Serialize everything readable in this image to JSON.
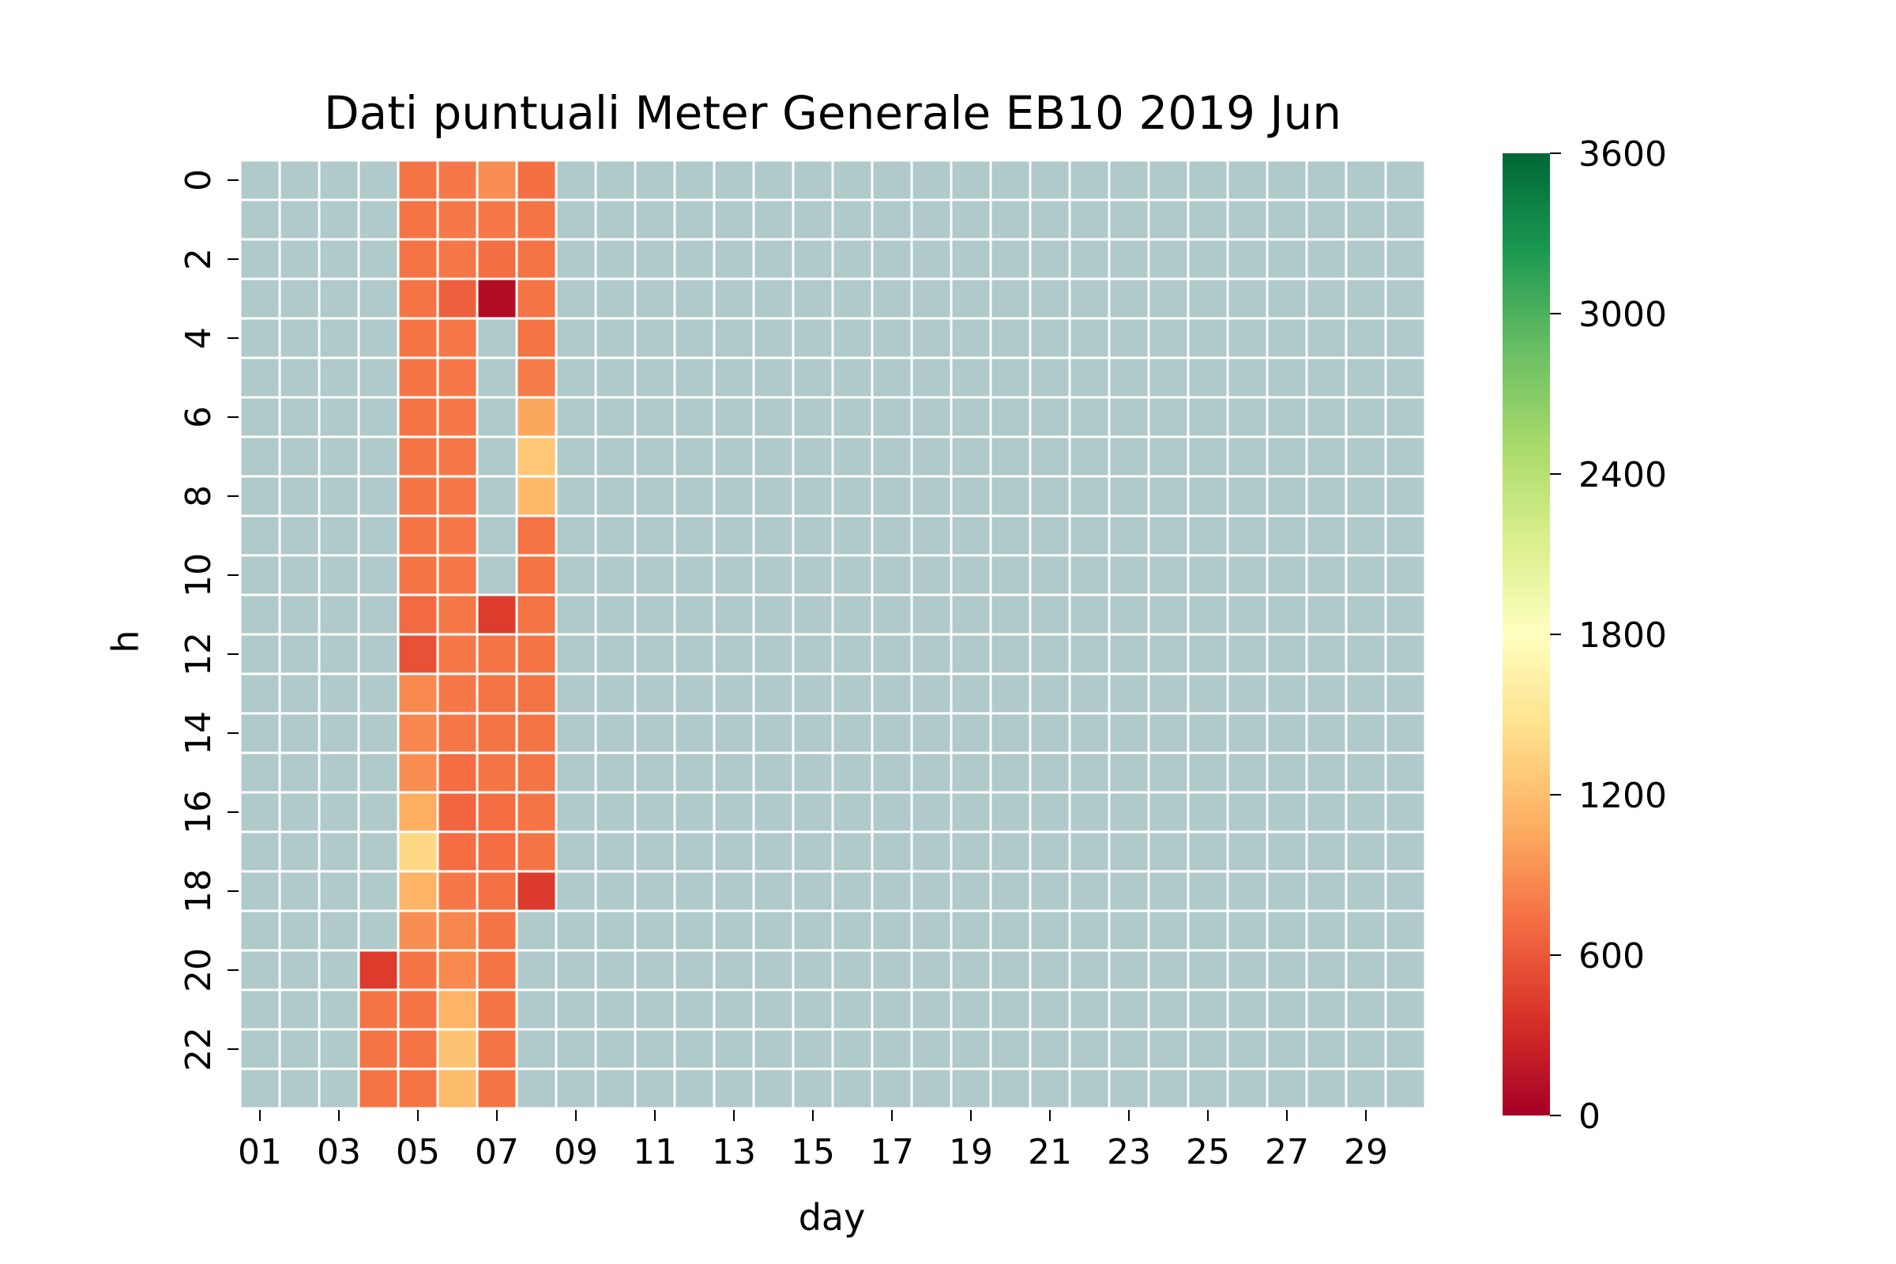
{
  "chart_data": {
    "type": "heatmap",
    "title": "Dati puntuali Meter Generale EB10 2019 Jun",
    "xlabel": "day",
    "ylabel": "h",
    "x_tick_labels": [
      "01",
      "03",
      "05",
      "07",
      "09",
      "11",
      "13",
      "15",
      "17",
      "19",
      "21",
      "23",
      "25",
      "27",
      "29"
    ],
    "x_tick_days": [
      1,
      3,
      5,
      7,
      9,
      11,
      13,
      15,
      17,
      19,
      21,
      23,
      25,
      27,
      29
    ],
    "y_tick_labels": [
      "0",
      "2",
      "4",
      "6",
      "8",
      "10",
      "12",
      "14",
      "16",
      "18",
      "20",
      "22"
    ],
    "y_tick_hours": [
      0,
      2,
      4,
      6,
      8,
      10,
      12,
      14,
      16,
      18,
      20,
      22
    ],
    "days": 30,
    "hours": 24,
    "missing_color": "#b0c9ca",
    "grid_color": "#ffffff",
    "colormap": "RdYlGn",
    "colorbar_ticks": [
      "0",
      "600",
      "1200",
      "1800",
      "2400",
      "3000",
      "3600"
    ],
    "colorbar_range": [
      0,
      3600
    ],
    "columns": [
      {
        "day": 4,
        "hour_start": 20,
        "values": [
          430,
          760,
          760,
          760
        ]
      },
      {
        "day": 5,
        "hour_start": 0,
        "values": [
          760,
          760,
          760,
          760,
          760,
          760,
          760,
          760,
          760,
          760,
          760,
          700,
          560,
          880,
          860,
          900,
          1080,
          1380,
          1120,
          900,
          760,
          760,
          760,
          760
        ]
      },
      {
        "day": 6,
        "hour_start": 0,
        "values": [
          780,
          780,
          780,
          640,
          780,
          780,
          780,
          780,
          780,
          780,
          780,
          780,
          780,
          780,
          780,
          720,
          680,
          720,
          780,
          860,
          880,
          1120,
          1230,
          1170
        ]
      },
      {
        "day": 7,
        "hour_start": 0,
        "values": [
          900,
          780,
          730,
          100
        ]
      },
      {
        "day": 7,
        "hour_start": 11,
        "values": [
          430,
          760,
          760,
          760,
          760,
          720,
          720,
          740,
          760,
          760,
          760,
          760,
          760
        ]
      },
      {
        "day": 8,
        "hour_start": 0,
        "values": [
          730,
          760,
          760,
          760,
          760,
          800,
          1040,
          1260,
          1160,
          760,
          760,
          760,
          760,
          760,
          760,
          760,
          760,
          760,
          420
        ]
      }
    ]
  }
}
